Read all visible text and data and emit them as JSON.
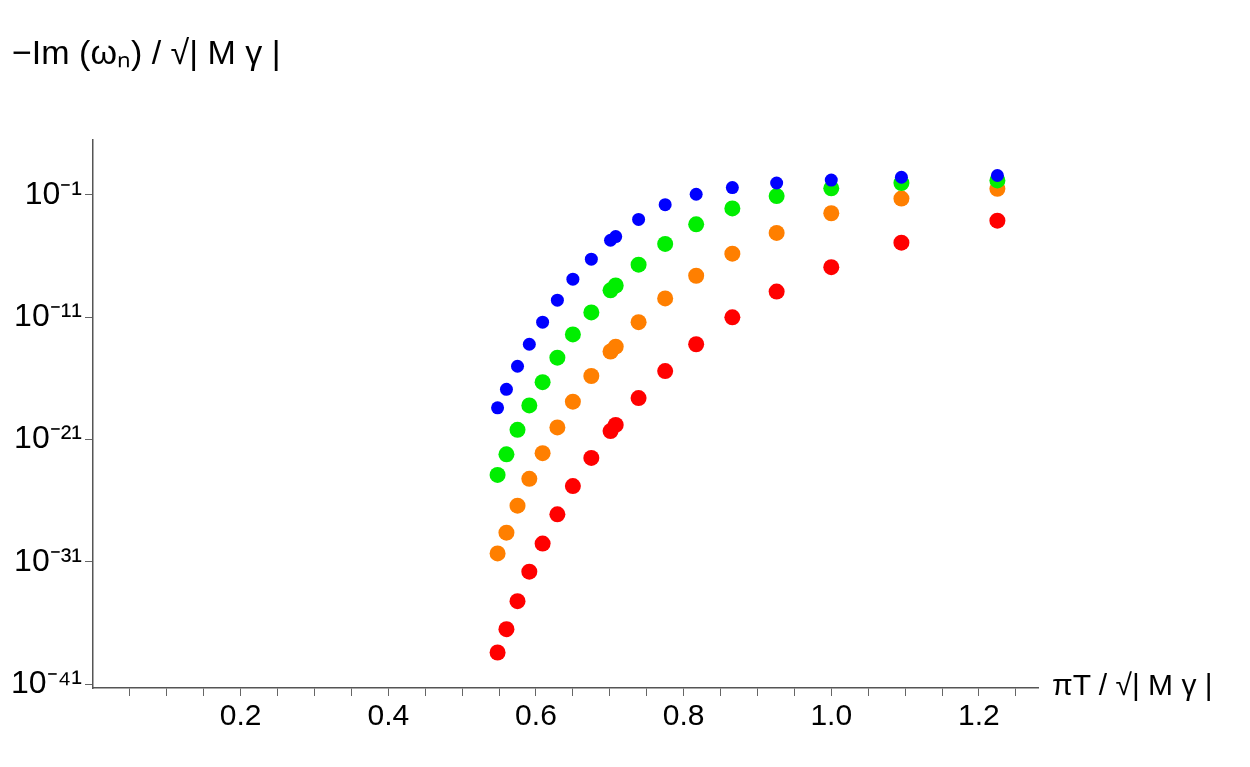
{
  "chart_data": {
    "type": "scatter",
    "xlabel": "πT / √| M γ |",
    "ylabel": "−Im (ωₙ) / √| M γ |",
    "log": "y",
    "grid": false,
    "legend": false,
    "marker": "circle",
    "x": [
      0.548,
      0.56,
      0.575,
      0.591,
      0.609,
      0.629,
      0.65,
      0.675,
      0.701,
      0.708,
      0.739,
      0.775,
      0.817,
      0.866,
      0.926,
      1.0,
      1.095,
      1.225
    ],
    "xlim": [
      0,
      1.28
    ],
    "xticks": [
      {
        "value": 0.05,
        "label": null
      },
      {
        "value": 0.1,
        "label": null
      },
      {
        "value": 0.15,
        "label": null
      },
      0.2,
      {
        "value": 0.25,
        "label": null
      },
      {
        "value": 0.3,
        "label": null
      },
      {
        "value": 0.35,
        "label": null
      },
      0.4,
      {
        "value": 0.45,
        "label": null
      },
      {
        "value": 0.5,
        "label": null
      },
      {
        "value": 0.55,
        "label": null
      },
      0.6,
      {
        "value": 0.65,
        "label": null
      },
      {
        "value": 0.7,
        "label": null
      },
      {
        "value": 0.75,
        "label": null
      },
      0.8,
      {
        "value": 0.85,
        "label": null
      },
      {
        "value": 0.9,
        "label": null
      },
      {
        "value": 0.95,
        "label": null
      },
      {
        "value": 1.0,
        "label": "1.0"
      },
      {
        "value": 1.05,
        "label": null
      },
      {
        "value": 1.1,
        "label": null
      },
      {
        "value": 1.15,
        "label": null
      },
      1.2,
      {
        "value": 1.25,
        "label": null
      }
    ],
    "ylim": [
      5e-42,
      3000
    ],
    "yticks": [
      {
        "value": 1e-41,
        "label": "10⁻⁴¹"
      },
      {
        "value": 1e-31,
        "label": "10⁻³¹"
      },
      {
        "value": 1e-21,
        "label": "10⁻²¹"
      },
      {
        "value": 1e-11,
        "label": "10⁻¹¹"
      },
      {
        "value": 0.1,
        "label": "10⁻¹"
      }
    ],
    "series": [
      {
        "color": "#0000ff",
        "values": [
          4e-19,
          1.3e-17,
          1e-15,
          6.3e-14,
          4e-12,
          2.5e-10,
          1.3e-08,
          5.6e-07,
          2e-05,
          4e-05,
          0.001,
          0.016,
          0.115,
          0.4,
          0.95,
          1.66,
          2.8,
          3.9
        ]
      },
      {
        "color": "#00ee00",
        "values": [
          1.3e-24,
          6.3e-23,
          6.3e-21,
          6.3e-19,
          5e-17,
          5e-15,
          4e-13,
          2.5e-11,
          1.6e-09,
          4e-09,
          2e-07,
          1e-05,
          0.0004,
          0.0079,
          0.081,
          0.35,
          0.95,
          1.55
        ]
      },
      {
        "color": "#ff7f00",
        "values": [
          5e-31,
          2.5e-29,
          4e-27,
          6.3e-25,
          7.9e-23,
          1e-20,
          1.26e-18,
          1.6e-16,
          1.6e-14,
          4e-14,
          4e-12,
          3.5e-10,
          2.5e-08,
          1.6e-06,
          7.9e-05,
          0.0032,
          0.051,
          0.32
        ]
      },
      {
        "color": "#ff0000",
        "values": [
          4e-39,
          3.2e-37,
          6.3e-35,
          1.6e-32,
          3.2e-30,
          7.9e-28,
          1.6e-25,
          3.2e-23,
          5e-21,
          1.6e-20,
          2.5e-18,
          4e-16,
          6.3e-14,
          1e-11,
          1.26e-09,
          1.26e-07,
          1.26e-05,
          0.00079
        ]
      }
    ]
  }
}
